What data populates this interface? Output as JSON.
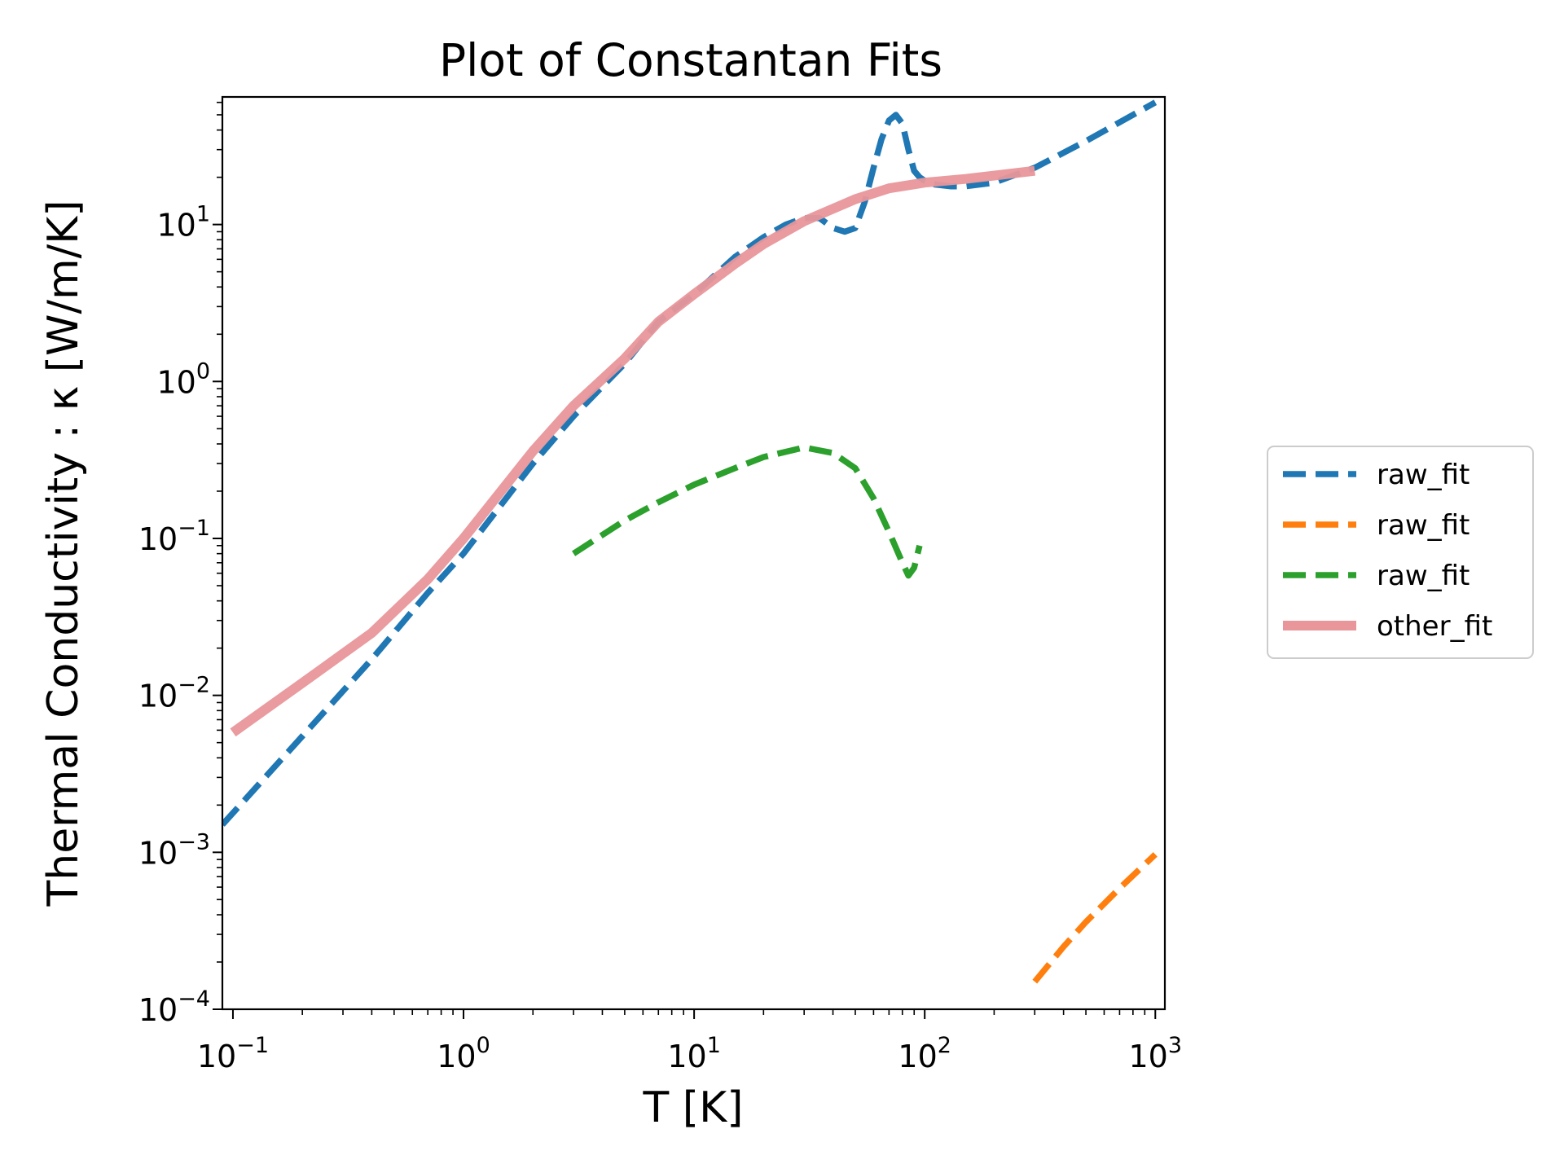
{
  "chart_data": {
    "type": "line",
    "title": "Plot of Constantan Fits",
    "xlabel": "T [K]",
    "ylabel": "Thermal Conductivity : κ [W/m/K]",
    "xscale": "log",
    "yscale": "log",
    "xlim": [
      0.09,
      1100
    ],
    "ylim": [
      0.0001,
      65
    ],
    "x_ticks": [
      {
        "base": "10",
        "exp": "−1",
        "value": 0.1
      },
      {
        "base": "10",
        "exp": "0",
        "value": 1
      },
      {
        "base": "10",
        "exp": "1",
        "value": 10
      },
      {
        "base": "10",
        "exp": "2",
        "value": 100
      },
      {
        "base": "10",
        "exp": "3",
        "value": 1000
      }
    ],
    "y_ticks": [
      {
        "base": "10",
        "exp": "−4",
        "value": 0.0001
      },
      {
        "base": "10",
        "exp": "−3",
        "value": 0.001
      },
      {
        "base": "10",
        "exp": "−2",
        "value": 0.01
      },
      {
        "base": "10",
        "exp": "−1",
        "value": 0.1
      },
      {
        "base": "10",
        "exp": "0",
        "value": 1
      },
      {
        "base": "10",
        "exp": "1",
        "value": 10
      }
    ],
    "legend_position": "outside-right",
    "series": [
      {
        "name": "raw_fit",
        "color": "#1f77b4",
        "style": "dashed",
        "x": [
          0.09,
          0.2,
          0.4,
          0.7,
          1,
          2,
          3,
          5,
          7,
          10,
          15,
          20,
          25,
          30,
          35,
          40,
          45,
          50,
          55,
          60,
          65,
          70,
          75,
          80,
          85,
          90,
          95,
          100,
          110,
          130,
          150,
          200,
          300,
          500,
          1000
        ],
        "y": [
          0.0015,
          0.0055,
          0.017,
          0.045,
          0.08,
          0.3,
          0.6,
          1.3,
          2.4,
          3.6,
          6.2,
          8.3,
          10.0,
          11.0,
          11.0,
          9.5,
          9.0,
          9.5,
          14.0,
          23.0,
          35.0,
          46.0,
          50.0,
          44.0,
          30.0,
          22.0,
          20.0,
          19.0,
          18.0,
          17.5,
          17.5,
          18.5,
          23.0,
          34.0,
          60.0
        ]
      },
      {
        "name": "raw_fit",
        "color": "#ff7f0e",
        "style": "dashed",
        "x": [
          300,
          400,
          500,
          700,
          1000
        ],
        "y": [
          0.00015,
          0.00025,
          0.00036,
          0.00059,
          0.00097
        ]
      },
      {
        "name": "raw_fit",
        "color": "#2ca02c",
        "style": "dashed",
        "x": [
          3,
          5,
          7,
          10,
          15,
          20,
          30,
          40,
          50,
          60,
          70,
          80,
          85,
          90,
          95
        ],
        "y": [
          0.08,
          0.13,
          0.17,
          0.22,
          0.28,
          0.33,
          0.38,
          0.35,
          0.28,
          0.18,
          0.11,
          0.07,
          0.058,
          0.065,
          0.09
        ]
      },
      {
        "name": "other_fit",
        "color": "#e8969a",
        "style": "solid",
        "x": [
          0.1,
          0.2,
          0.4,
          0.7,
          1,
          2,
          3,
          5,
          7,
          10,
          15,
          20,
          30,
          50,
          70,
          100,
          150,
          200,
          300
        ],
        "y": [
          0.0058,
          0.012,
          0.025,
          0.055,
          0.1,
          0.36,
          0.7,
          1.4,
          2.4,
          3.6,
          5.6,
          7.5,
          10.5,
          14.5,
          17.0,
          18.5,
          19.5,
          20.5,
          22.0
        ]
      }
    ]
  }
}
